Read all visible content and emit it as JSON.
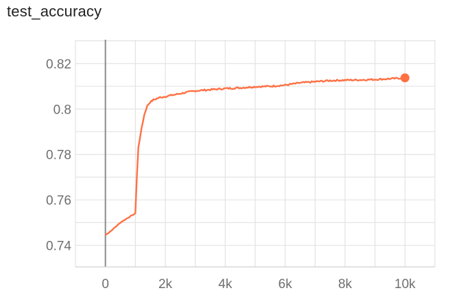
{
  "chart_data": {
    "type": "line",
    "title": "test_accuracy",
    "xlabel": "",
    "ylabel": "",
    "xlim": [
      -1000,
      11000
    ],
    "ylim": [
      0.7305,
      0.8305
    ],
    "x_ticks": [
      0,
      2000,
      4000,
      6000,
      8000,
      10000
    ],
    "x_tick_labels": [
      "0",
      "2k",
      "4k",
      "6k",
      "8k",
      "10k"
    ],
    "y_ticks": [
      0.74,
      0.76,
      0.78,
      0.8,
      0.82
    ],
    "y_tick_labels": [
      "0.74",
      "0.76",
      "0.78",
      "0.8",
      "0.82"
    ],
    "grid": true,
    "legend": "none",
    "series": [
      {
        "color": "#ff7043",
        "x": [
          0,
          200,
          500,
          800,
          1000,
          1050,
          1100,
          1200,
          1300,
          1400,
          1500,
          1600,
          1800,
          2000,
          2500,
          3000,
          3500,
          4000,
          4500,
          5000,
          5500,
          6000,
          6500,
          7000,
          7500,
          8000,
          8500,
          9000,
          9500,
          10000
        ],
        "y": [
          0.7445,
          0.7465,
          0.75,
          0.7525,
          0.754,
          0.77,
          0.783,
          0.791,
          0.7975,
          0.8015,
          0.803,
          0.804,
          0.805,
          0.8055,
          0.8068,
          0.808,
          0.8085,
          0.809,
          0.8093,
          0.8098,
          0.81,
          0.8105,
          0.8115,
          0.812,
          0.8125,
          0.8127,
          0.8128,
          0.813,
          0.8133,
          0.8137
        ],
        "end_marker": true
      }
    ]
  }
}
